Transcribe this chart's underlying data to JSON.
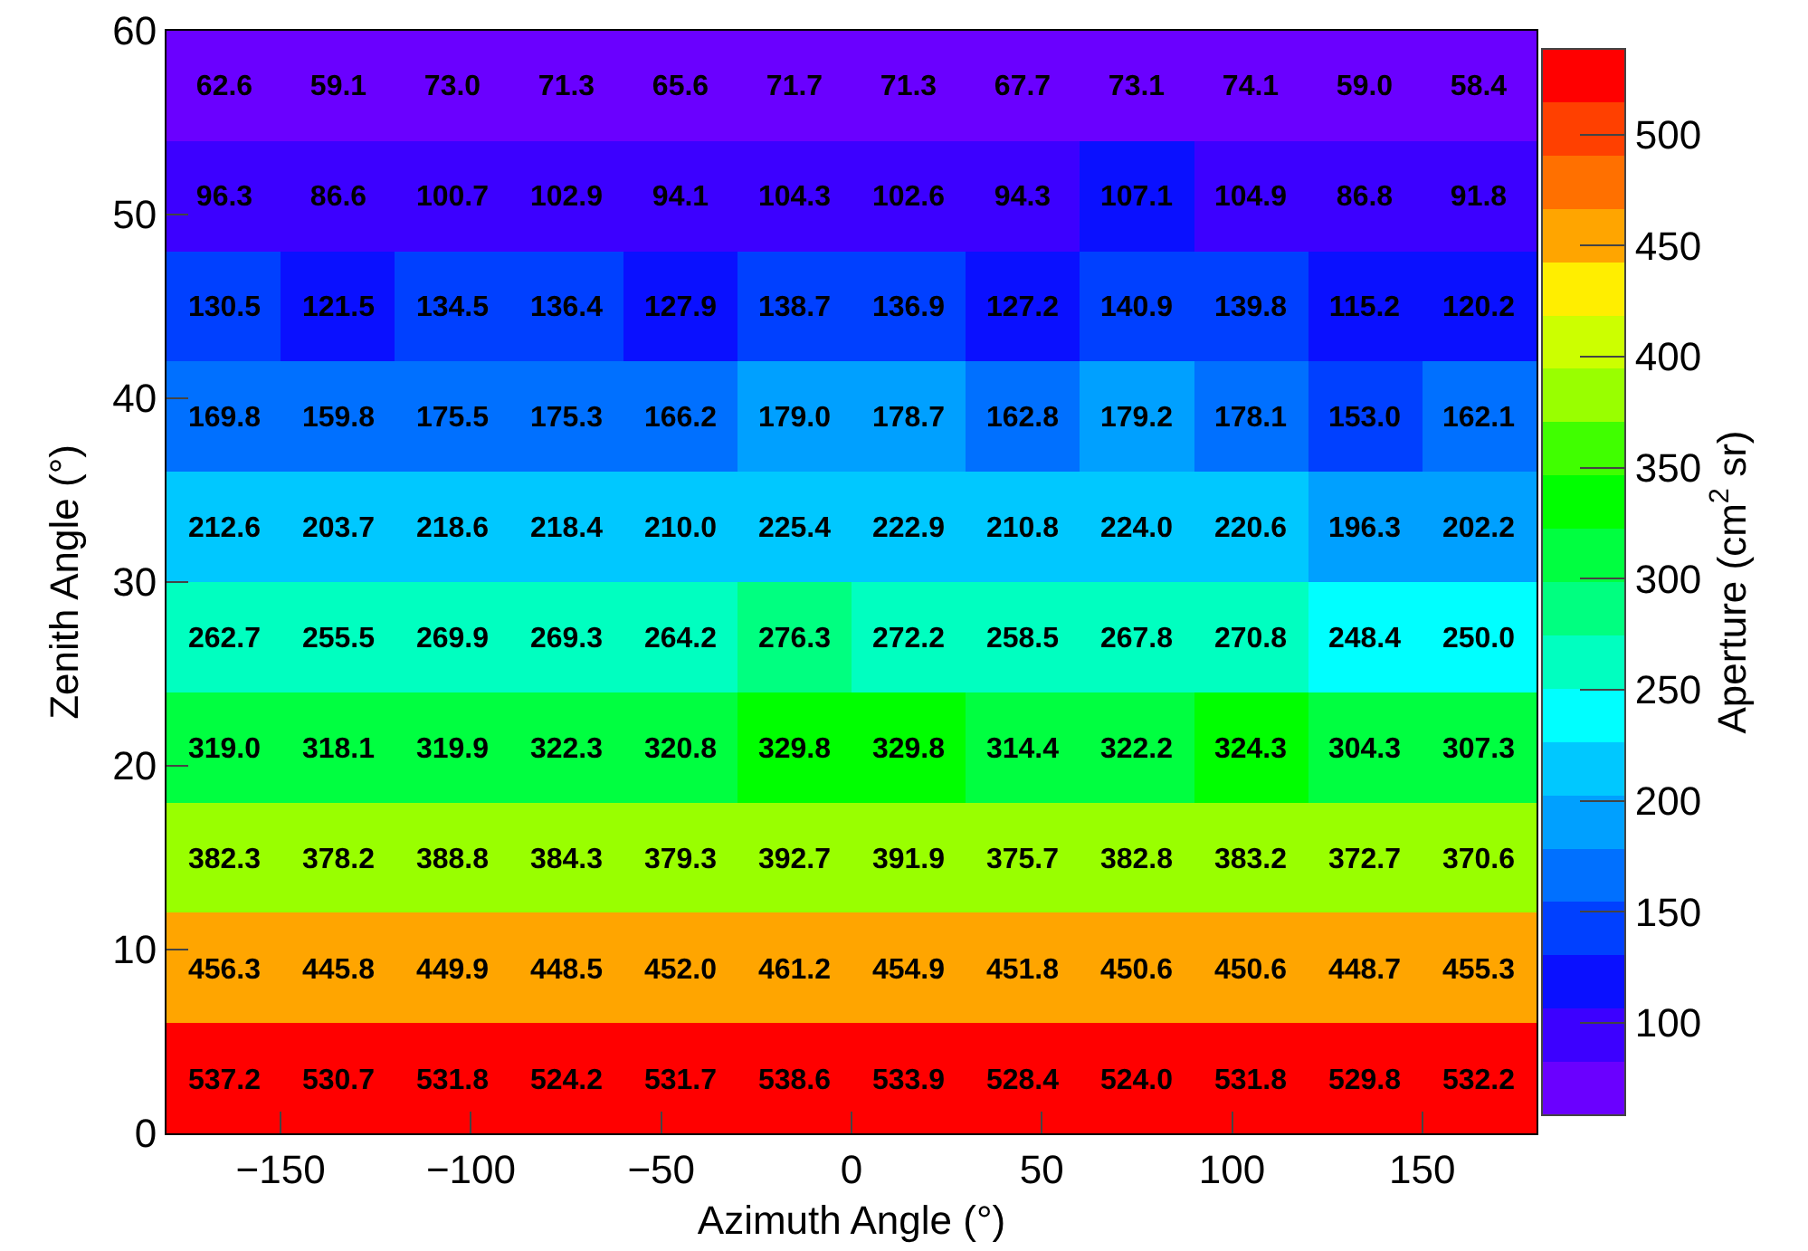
{
  "chart_data": {
    "type": "heatmap",
    "xlabel": "Azimuth Angle (°)",
    "ylabel": "Zenith Angle (°)",
    "clabel": "Aperture (cm$^{2}$ sr)",
    "x": [
      -165,
      -135,
      -105,
      -75,
      -45,
      -15,
      15,
      45,
      75,
      105,
      135,
      165
    ],
    "cell_labels": [
      [
        "62.6",
        "59.1",
        "73.0",
        "71.3",
        "65.6",
        "71.7",
        "71.3",
        "67.7",
        "73.1",
        "74.1",
        "59.0",
        "58.4"
      ],
      [
        "96.3",
        "86.6",
        "100.7",
        "102.9",
        "94.1",
        "104.3",
        "102.6",
        "94.3",
        "107.1",
        "104.9",
        "86.8",
        "91.8"
      ],
      [
        "130.5",
        "121.5",
        "134.5",
        "136.4",
        "127.9",
        "138.7",
        "136.9",
        "127.2",
        "140.9",
        "139.8",
        "115.2",
        "120.2"
      ],
      [
        "169.8",
        "159.8",
        "175.5",
        "175.3",
        "166.2",
        "179.0",
        "178.7",
        "162.8",
        "179.2",
        "178.1",
        "153.0",
        "162.1"
      ],
      [
        "212.6",
        "203.7",
        "218.6",
        "218.4",
        "210.0",
        "225.4",
        "222.9",
        "210.8",
        "224.0",
        "220.6",
        "196.3",
        "202.2"
      ],
      [
        "262.7",
        "255.5",
        "269.9",
        "269.3",
        "264.2",
        "276.3",
        "272.2",
        "258.5",
        "267.8",
        "270.8",
        "248.4",
        "250.0"
      ],
      [
        "319.0",
        "318.1",
        "319.9",
        "322.3",
        "320.8",
        "329.8",
        "329.8",
        "314.4",
        "322.2",
        "324.3",
        "304.3",
        "307.3"
      ],
      [
        "382.3",
        "378.2",
        "388.8",
        "384.3",
        "379.3",
        "392.7",
        "391.9",
        "375.7",
        "382.8",
        "383.2",
        "372.7",
        "370.6"
      ],
      [
        "456.3",
        "445.8",
        "449.9",
        "448.5",
        "452.0",
        "461.2",
        "454.9",
        "451.8",
        "450.6",
        "450.6",
        "448.7",
        "455.3"
      ],
      [
        "537.2",
        "530.7",
        "531.8",
        "524.2",
        "531.7",
        "538.6",
        "533.9",
        "528.4",
        "524.0",
        "531.8",
        "529.8",
        "532.2"
      ]
    ],
    "cells": [
      [
        62.6,
        59.1,
        73.0,
        71.3,
        65.6,
        71.7,
        71.3,
        67.7,
        73.1,
        74.1,
        59.0,
        58.4
      ],
      [
        96.3,
        86.6,
        100.7,
        102.9,
        94.1,
        104.3,
        102.6,
        94.3,
        107.1,
        104.9,
        86.8,
        91.8
      ],
      [
        130.5,
        121.5,
        134.5,
        136.4,
        127.9,
        138.7,
        136.9,
        127.2,
        140.9,
        139.8,
        115.2,
        120.2
      ],
      [
        169.8,
        159.8,
        175.5,
        175.3,
        166.2,
        179.0,
        178.7,
        162.8,
        179.2,
        178.1,
        153.0,
        162.1
      ],
      [
        212.6,
        203.7,
        218.6,
        218.4,
        210.0,
        225.4,
        222.9,
        210.8,
        224.0,
        220.6,
        196.3,
        202.2
      ],
      [
        262.7,
        255.5,
        269.9,
        269.3,
        264.2,
        276.3,
        272.2,
        258.5,
        267.8,
        270.8,
        248.4,
        250.0
      ],
      [
        319.0,
        318.1,
        319.9,
        322.3,
        320.8,
        329.8,
        329.8,
        314.4,
        322.2,
        324.3,
        304.3,
        307.3
      ],
      [
        382.3,
        378.2,
        388.8,
        384.3,
        379.3,
        392.7,
        391.9,
        375.7,
        382.8,
        383.2,
        372.7,
        370.6
      ],
      [
        456.3,
        445.8,
        449.9,
        448.5,
        452.0,
        461.2,
        454.9,
        451.8,
        450.6,
        450.6,
        448.7,
        455.3
      ],
      [
        537.2,
        530.7,
        531.8,
        524.2,
        531.7,
        538.6,
        533.9,
        528.4,
        524.0,
        531.8,
        529.8,
        532.2
      ]
    ],
    "xlim": [
      -180,
      180
    ],
    "xticks": [
      {
        "value": -150,
        "label": "−150"
      },
      {
        "value": -100,
        "label": "−100"
      },
      {
        "value": -50,
        "label": "−50"
      },
      0,
      50,
      100,
      150
    ],
    "ylim": [
      0,
      60
    ],
    "yticks": [
      0,
      10,
      20,
      30,
      40,
      50,
      60
    ],
    "clim": [
      58.4,
      538.6
    ],
    "cticks": [
      100,
      150,
      200,
      250,
      300,
      350,
      400,
      450,
      500
    ]
  }
}
